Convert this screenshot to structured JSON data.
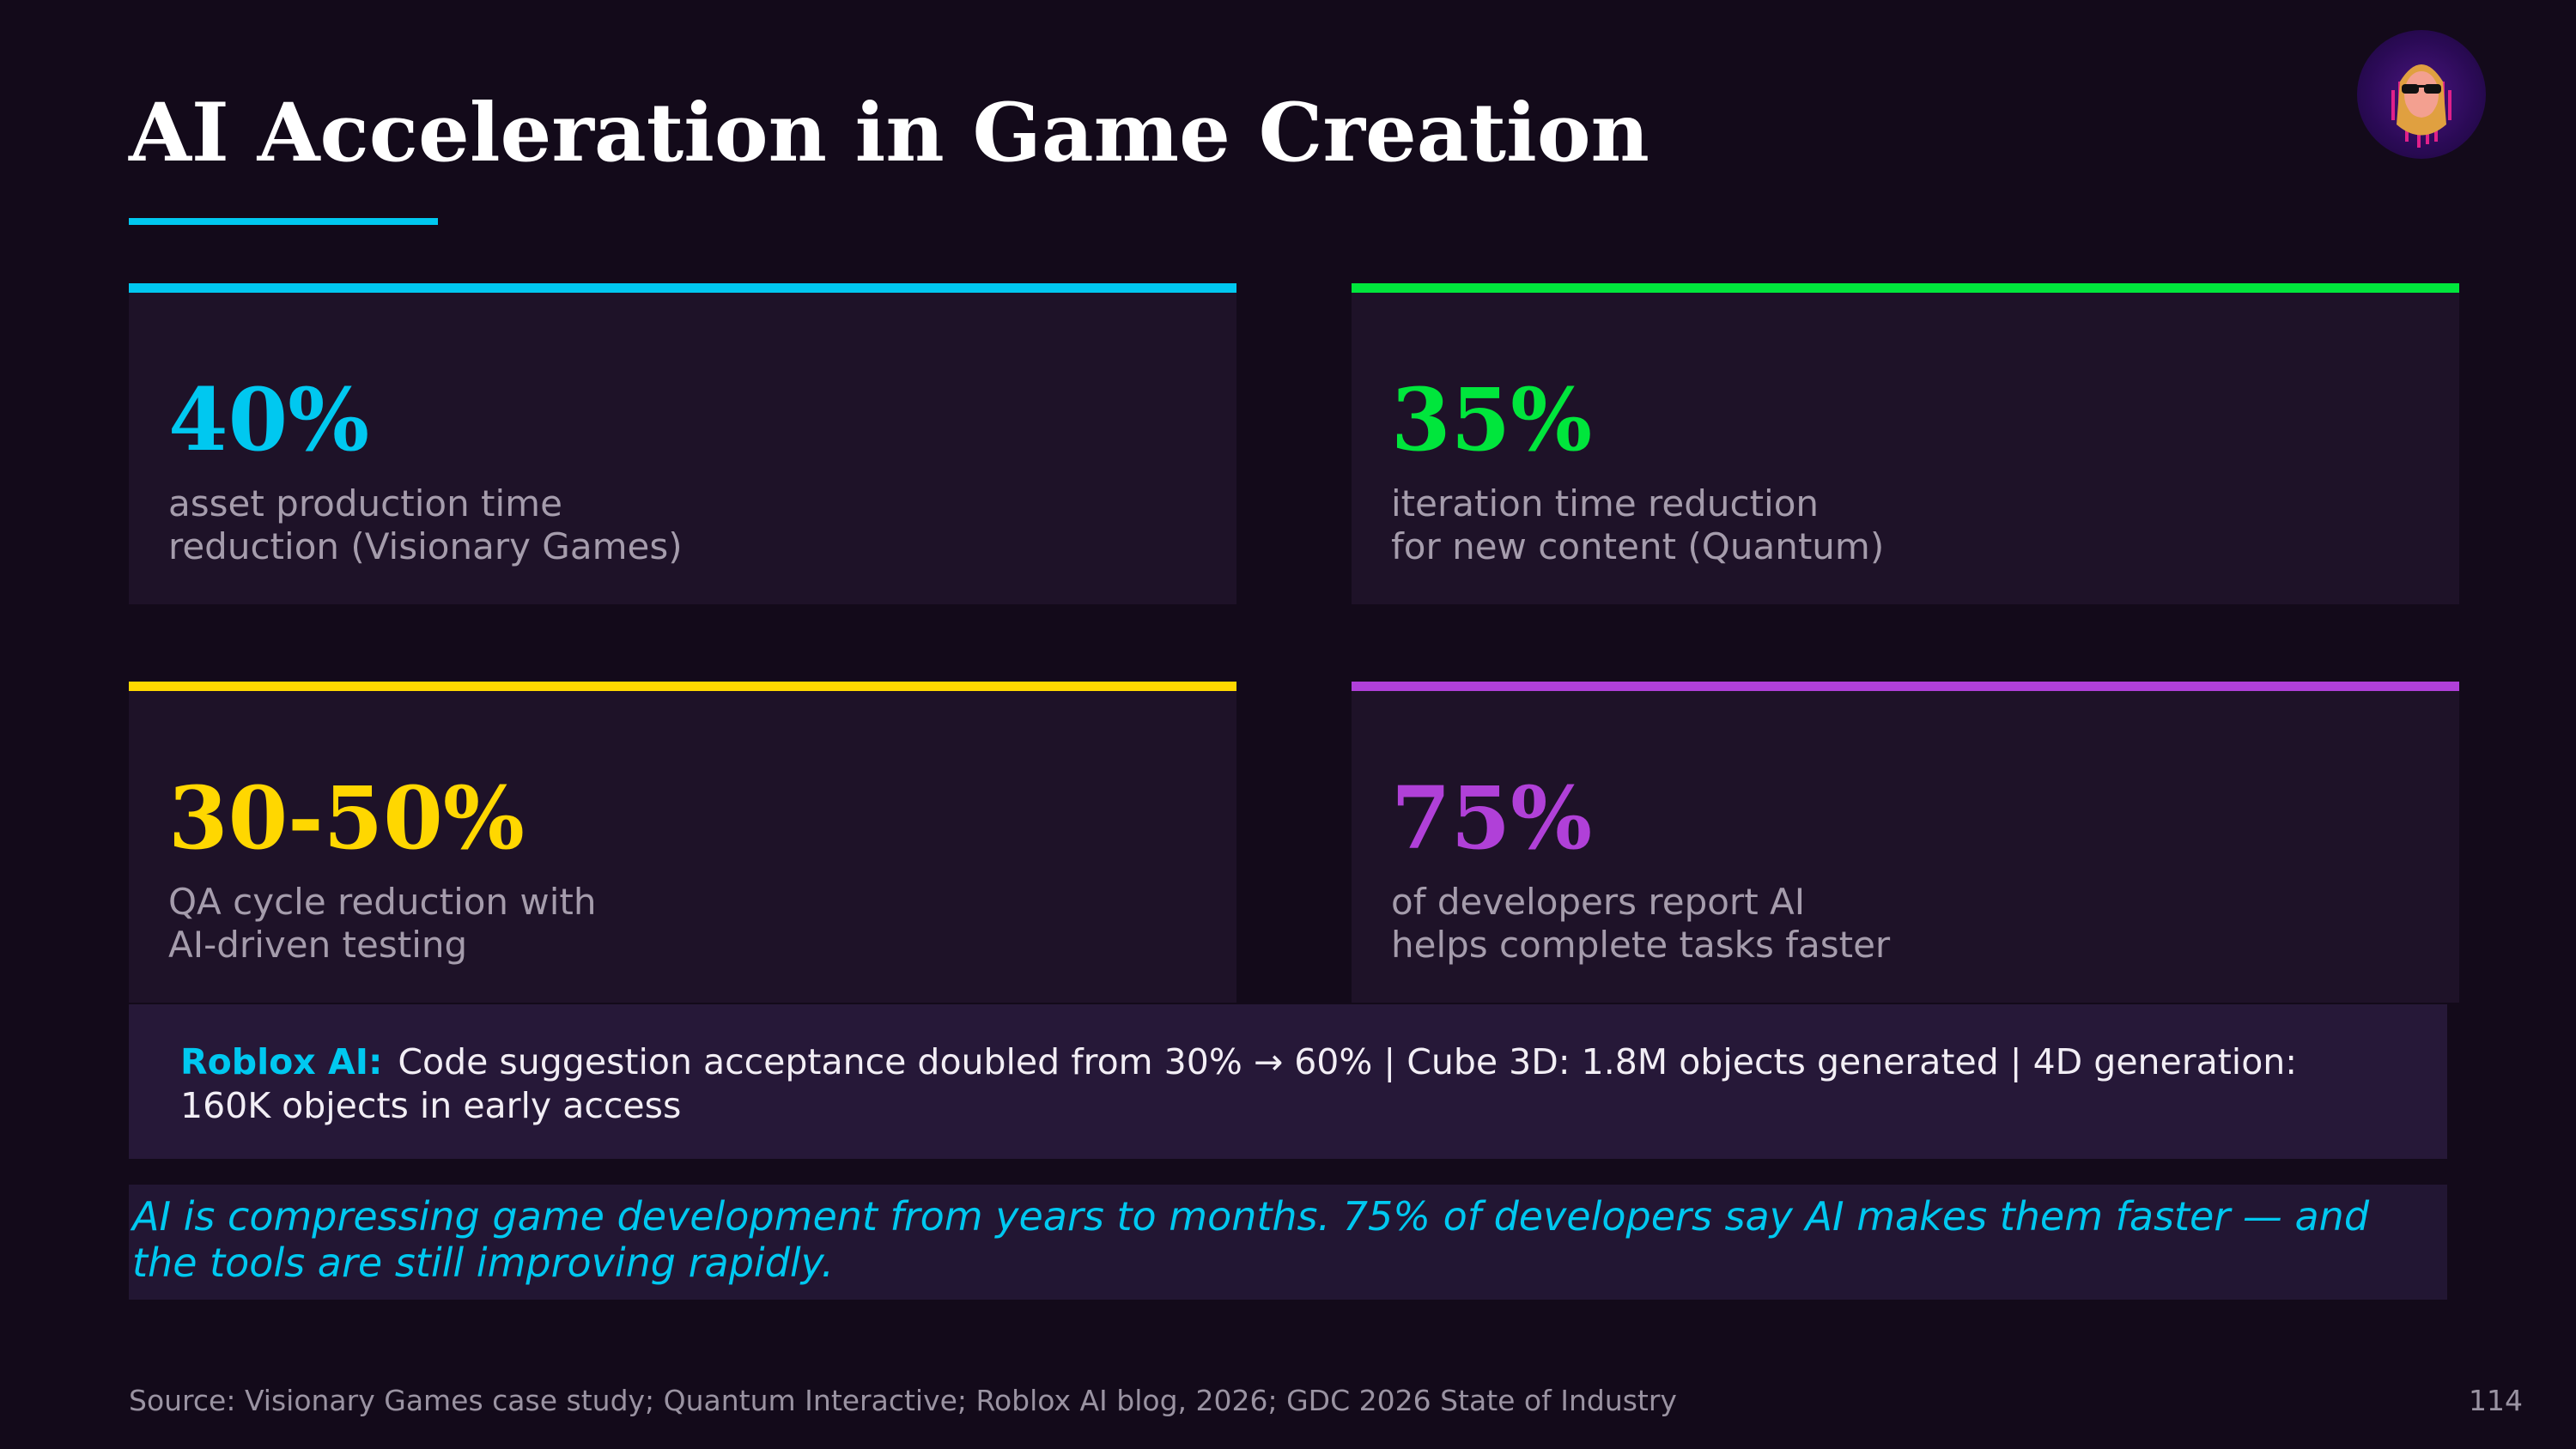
{
  "title": "AI Acceleration in Game Creation",
  "stats": [
    {
      "value": "40%",
      "line1": "asset production time",
      "line2": "reduction (Visionary Games)",
      "color": "#00c8f0"
    },
    {
      "value": "35%",
      "line1": "iteration time reduction",
      "line2": "for new content (Quantum)",
      "color": "#00e63c"
    },
    {
      "value": "30-50%",
      "line1": "QA cycle reduction with",
      "line2": "AI-driven testing",
      "color": "#ffd700"
    },
    {
      "value": "75%",
      "line1": "of developers report AI",
      "line2": "helps complete tasks faster",
      "color": "#b040d8"
    }
  ],
  "banner": {
    "label": "Roblox AI:",
    "text": "Code suggestion acceptance doubled from 30% → 60%  |  Cube 3D: 1.8M objects generated  |  4D generation: 160K objects in early access"
  },
  "quote": "AI is compressing game development from years to months. 75% of developers say AI makes them faster — and the tools are still improving rapidly.",
  "footer": {
    "source": "Source: Visionary Games case study; Quantum Interactive; Roblox AI blog, 2026; GDC 2026 State of Industry",
    "page": "114"
  },
  "avatar": {
    "icon": "bearded-man-sunglasses-avatar"
  }
}
